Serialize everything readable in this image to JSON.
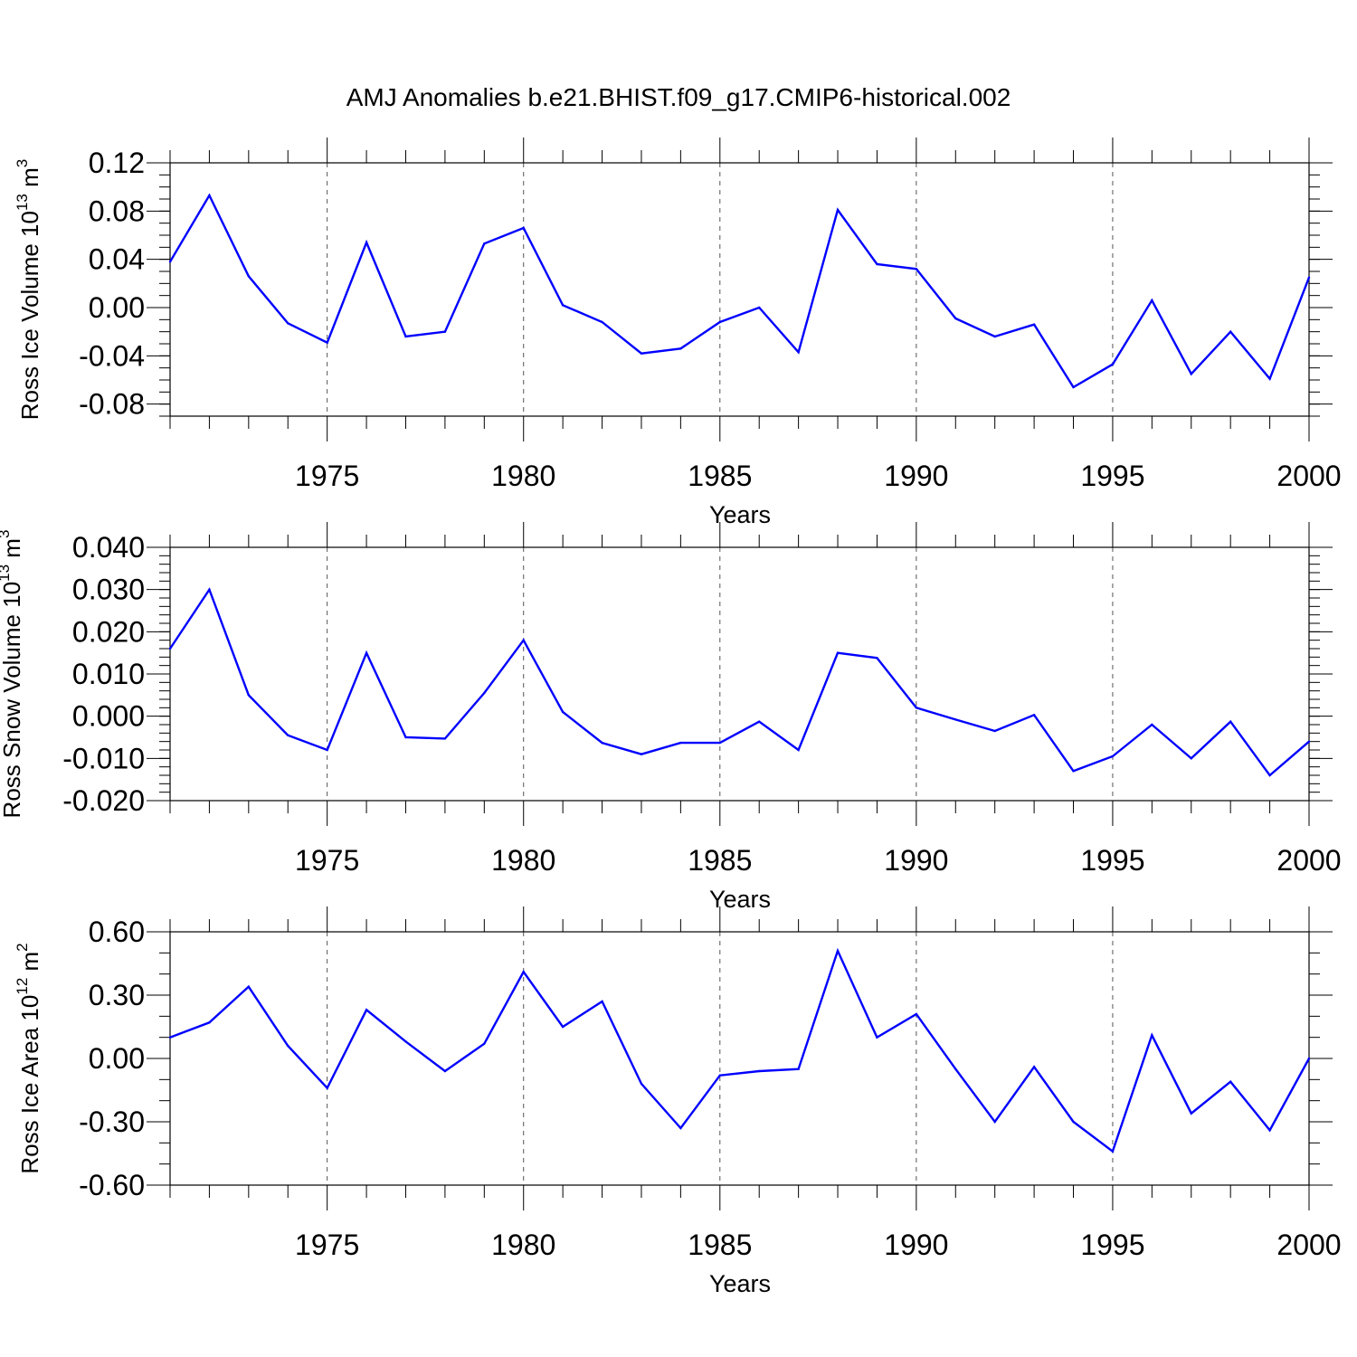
{
  "title": "AMJ Anomalies b.e21.BHIST.f09_g17.CMIP6-historical.002",
  "chart_data": [
    {
      "type": "line",
      "ylabel": {
        "pre": "Ross Ice Volume 10",
        "exp": "13",
        "mid": " m",
        "unit_exp": "3"
      },
      "xlabel": "Years",
      "x": [
        1971,
        1972,
        1973,
        1974,
        1975,
        1976,
        1977,
        1978,
        1979,
        1980,
        1981,
        1982,
        1983,
        1984,
        1985,
        1986,
        1987,
        1988,
        1989,
        1990,
        1991,
        1992,
        1993,
        1994,
        1995,
        1996,
        1997,
        1998,
        1999,
        2000
      ],
      "values": [
        0.038,
        0.093,
        0.026,
        -0.013,
        -0.029,
        0.054,
        -0.024,
        -0.02,
        0.053,
        0.066,
        0.002,
        -0.012,
        -0.038,
        -0.034,
        -0.012,
        0.0,
        -0.037,
        0.081,
        0.036,
        0.032,
        -0.009,
        -0.024,
        -0.014,
        -0.066,
        -0.047,
        0.006,
        -0.055,
        -0.02,
        -0.059,
        0.025
      ],
      "xlim": [
        1971,
        2000
      ],
      "ylim": [
        -0.09,
        0.12
      ],
      "yticks": [
        0.12,
        0.08,
        0.04,
        0.0,
        -0.04,
        -0.08
      ],
      "ytick_labels": [
        "0.12",
        "0.08",
        "0.04",
        "0.00",
        "-0.04",
        "-0.08"
      ],
      "xticks": [
        1975,
        1980,
        1985,
        1990,
        1995,
        2000
      ],
      "xtick_labels": [
        "1975",
        "1980",
        "1985",
        "1990",
        "1995",
        "2000"
      ],
      "yminor_step": 0.01,
      "grid": "vertical dashed",
      "color": "#0000ff"
    },
    {
      "type": "line",
      "ylabel": {
        "pre": "Ross Snow Volume 10",
        "exp": "13",
        "mid": " m",
        "unit_exp": "3"
      },
      "xlabel": "Years",
      "x": [
        1971,
        1972,
        1973,
        1974,
        1975,
        1976,
        1977,
        1978,
        1979,
        1980,
        1981,
        1982,
        1983,
        1984,
        1985,
        1986,
        1987,
        1988,
        1989,
        1990,
        1991,
        1992,
        1993,
        1994,
        1995,
        1996,
        1997,
        1998,
        1999,
        2000
      ],
      "values": [
        0.016,
        0.03,
        0.005,
        -0.0045,
        -0.008,
        0.015,
        -0.005,
        -0.0053,
        0.0055,
        0.018,
        0.001,
        -0.0063,
        -0.009,
        -0.0063,
        -0.0063,
        -0.0013,
        -0.008,
        0.015,
        0.0138,
        0.002,
        -0.0008,
        -0.0035,
        0.0003,
        -0.013,
        -0.0095,
        -0.002,
        -0.01,
        -0.0013,
        -0.014,
        -0.006
      ],
      "xlim": [
        1971,
        2000
      ],
      "ylim": [
        -0.02,
        0.04
      ],
      "yticks": [
        0.04,
        0.03,
        0.02,
        0.01,
        0.0,
        -0.01,
        -0.02
      ],
      "ytick_labels": [
        "0.040",
        "0.030",
        "0.020",
        "0.010",
        "0.000",
        "-0.010",
        "-0.020"
      ],
      "xticks": [
        1975,
        1980,
        1985,
        1990,
        1995,
        2000
      ],
      "xtick_labels": [
        "1975",
        "1980",
        "1985",
        "1990",
        "1995",
        "2000"
      ],
      "yminor_step": 0.002,
      "grid": "vertical dashed",
      "color": "#0000ff"
    },
    {
      "type": "line",
      "ylabel": {
        "pre": "Ross Ice Area 10",
        "exp": "12",
        "mid": " m",
        "unit_exp": "2"
      },
      "xlabel": "Years",
      "x": [
        1971,
        1972,
        1973,
        1974,
        1975,
        1976,
        1977,
        1978,
        1979,
        1980,
        1981,
        1982,
        1983,
        1984,
        1985,
        1986,
        1987,
        1988,
        1989,
        1990,
        1991,
        1992,
        1993,
        1994,
        1995,
        1996,
        1997,
        1998,
        1999,
        2000
      ],
      "values": [
        0.1,
        0.17,
        0.34,
        0.06,
        -0.14,
        0.23,
        0.08,
        -0.06,
        0.07,
        0.41,
        0.15,
        0.27,
        -0.12,
        -0.33,
        -0.08,
        -0.06,
        -0.05,
        0.51,
        0.1,
        0.21,
        -0.05,
        -0.3,
        -0.04,
        -0.3,
        -0.44,
        0.11,
        -0.26,
        -0.11,
        -0.34,
        0.0
      ],
      "xlim": [
        1971,
        2000
      ],
      "ylim": [
        -0.6,
        0.6
      ],
      "yticks": [
        0.6,
        0.3,
        0.0,
        -0.3,
        -0.6
      ],
      "ytick_labels": [
        "0.60",
        "0.30",
        "0.00",
        "-0.30",
        "-0.60"
      ],
      "xticks": [
        1975,
        1980,
        1985,
        1990,
        1995,
        2000
      ],
      "xtick_labels": [
        "1975",
        "1980",
        "1985",
        "1990",
        "1995",
        "2000"
      ],
      "yminor_step": 0.1,
      "grid": "vertical dashed",
      "color": "#0000ff"
    }
  ]
}
